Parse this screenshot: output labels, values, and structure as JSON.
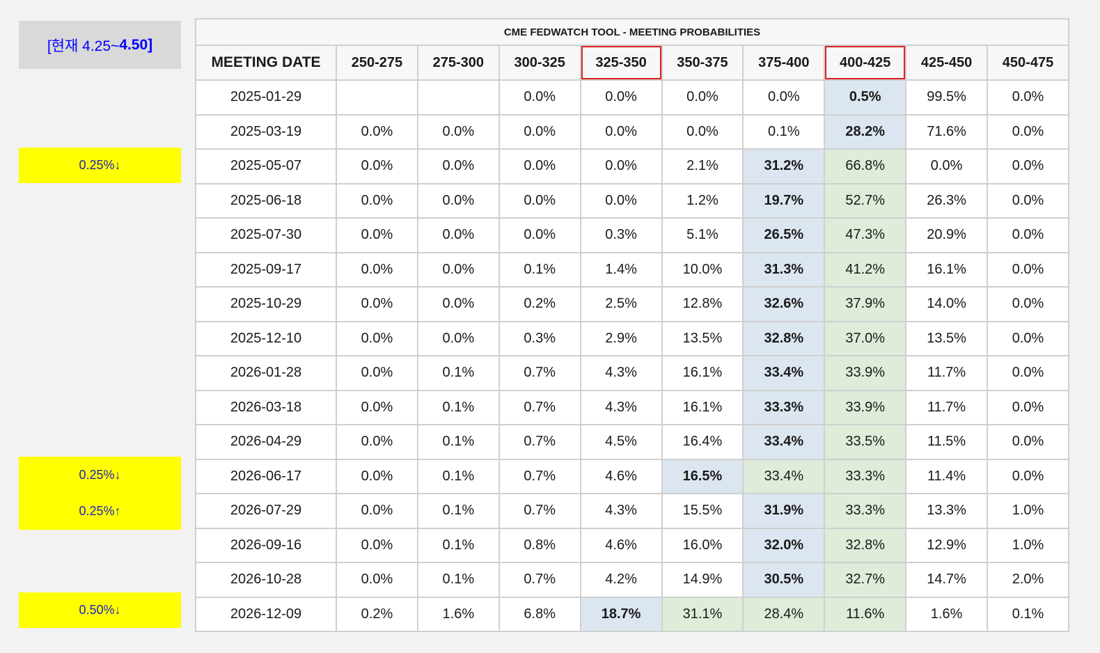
{
  "current_rate": {
    "prefix": "[현재 4.25~",
    "bold_part": "4.50]"
  },
  "side_notes": [
    {
      "lines": [
        "0.25%↓"
      ]
    },
    {
      "lines": [
        "0.25%↓",
        "0.25%↑"
      ]
    },
    {
      "lines": [
        "0.50%↓"
      ]
    }
  ],
  "table": {
    "title": "CME FEDWATCH TOOL - MEETING PROBABILITIES",
    "headers": [
      "MEETING DATE",
      "250-275",
      "275-300",
      "300-325",
      "325-350",
      "350-375",
      "375-400",
      "400-425",
      "425-450",
      "450-475"
    ],
    "highlighted_headers": [
      4,
      7
    ],
    "rows": [
      {
        "date": "2025-01-29",
        "values": [
          "",
          "",
          "0.0%",
          "0.0%",
          "0.0%",
          "0.0%",
          "0.5%",
          "99.5%",
          "0.0%"
        ],
        "blue": 7,
        "green": []
      },
      {
        "date": "2025-03-19",
        "values": [
          "0.0%",
          "0.0%",
          "0.0%",
          "0.0%",
          "0.0%",
          "0.1%",
          "28.2%",
          "71.6%",
          "0.0%"
        ],
        "blue": 7,
        "green": []
      },
      {
        "date": "2025-05-07",
        "values": [
          "0.0%",
          "0.0%",
          "0.0%",
          "0.0%",
          "2.1%",
          "31.2%",
          "66.8%",
          "0.0%",
          "0.0%"
        ],
        "blue": 6,
        "green": [
          7
        ]
      },
      {
        "date": "2025-06-18",
        "values": [
          "0.0%",
          "0.0%",
          "0.0%",
          "0.0%",
          "1.2%",
          "19.7%",
          "52.7%",
          "26.3%",
          "0.0%"
        ],
        "blue": 6,
        "green": [
          7
        ]
      },
      {
        "date": "2025-07-30",
        "values": [
          "0.0%",
          "0.0%",
          "0.0%",
          "0.3%",
          "5.1%",
          "26.5%",
          "47.3%",
          "20.9%",
          "0.0%"
        ],
        "blue": 6,
        "green": [
          7
        ]
      },
      {
        "date": "2025-09-17",
        "values": [
          "0.0%",
          "0.0%",
          "0.1%",
          "1.4%",
          "10.0%",
          "31.3%",
          "41.2%",
          "16.1%",
          "0.0%"
        ],
        "blue": 6,
        "green": [
          7
        ]
      },
      {
        "date": "2025-10-29",
        "values": [
          "0.0%",
          "0.0%",
          "0.2%",
          "2.5%",
          "12.8%",
          "32.6%",
          "37.9%",
          "14.0%",
          "0.0%"
        ],
        "blue": 6,
        "green": [
          7
        ]
      },
      {
        "date": "2025-12-10",
        "values": [
          "0.0%",
          "0.0%",
          "0.3%",
          "2.9%",
          "13.5%",
          "32.8%",
          "37.0%",
          "13.5%",
          "0.0%"
        ],
        "blue": 6,
        "green": [
          7
        ]
      },
      {
        "date": "2026-01-28",
        "values": [
          "0.0%",
          "0.1%",
          "0.7%",
          "4.3%",
          "16.1%",
          "33.4%",
          "33.9%",
          "11.7%",
          "0.0%"
        ],
        "blue": 6,
        "green": [
          7
        ]
      },
      {
        "date": "2026-03-18",
        "values": [
          "0.0%",
          "0.1%",
          "0.7%",
          "4.3%",
          "16.1%",
          "33.3%",
          "33.9%",
          "11.7%",
          "0.0%"
        ],
        "blue": 6,
        "green": [
          7
        ]
      },
      {
        "date": "2026-04-29",
        "values": [
          "0.0%",
          "0.1%",
          "0.7%",
          "4.5%",
          "16.4%",
          "33.4%",
          "33.5%",
          "11.5%",
          "0.0%"
        ],
        "blue": 6,
        "green": [
          7
        ]
      },
      {
        "date": "2026-06-17",
        "values": [
          "0.0%",
          "0.1%",
          "0.7%",
          "4.6%",
          "16.5%",
          "33.4%",
          "33.3%",
          "11.4%",
          "0.0%"
        ],
        "blue": 5,
        "green": [
          6,
          7
        ]
      },
      {
        "date": "2026-07-29",
        "values": [
          "0.0%",
          "0.1%",
          "0.7%",
          "4.3%",
          "15.5%",
          "31.9%",
          "33.3%",
          "13.3%",
          "1.0%"
        ],
        "blue": 6,
        "green": [
          7
        ]
      },
      {
        "date": "2026-09-16",
        "values": [
          "0.0%",
          "0.1%",
          "0.8%",
          "4.6%",
          "16.0%",
          "32.0%",
          "32.8%",
          "12.9%",
          "1.0%"
        ],
        "blue": 6,
        "green": [
          7
        ]
      },
      {
        "date": "2026-10-28",
        "values": [
          "0.0%",
          "0.1%",
          "0.7%",
          "4.2%",
          "14.9%",
          "30.5%",
          "32.7%",
          "14.7%",
          "2.0%"
        ],
        "blue": 6,
        "green": [
          7
        ]
      },
      {
        "date": "2026-12-09",
        "values": [
          "0.2%",
          "1.6%",
          "6.8%",
          "18.7%",
          "31.1%",
          "28.4%",
          "11.6%",
          "1.6%",
          "0.1%"
        ],
        "blue": 4,
        "green": [
          5,
          6,
          7
        ]
      }
    ]
  },
  "colors": {
    "blue_cell": "#dce6f1",
    "green_cell": "#deecd9",
    "note_yellow": "#ffff00",
    "highlight_border": "#e02020",
    "current_text": "#0000ff"
  }
}
